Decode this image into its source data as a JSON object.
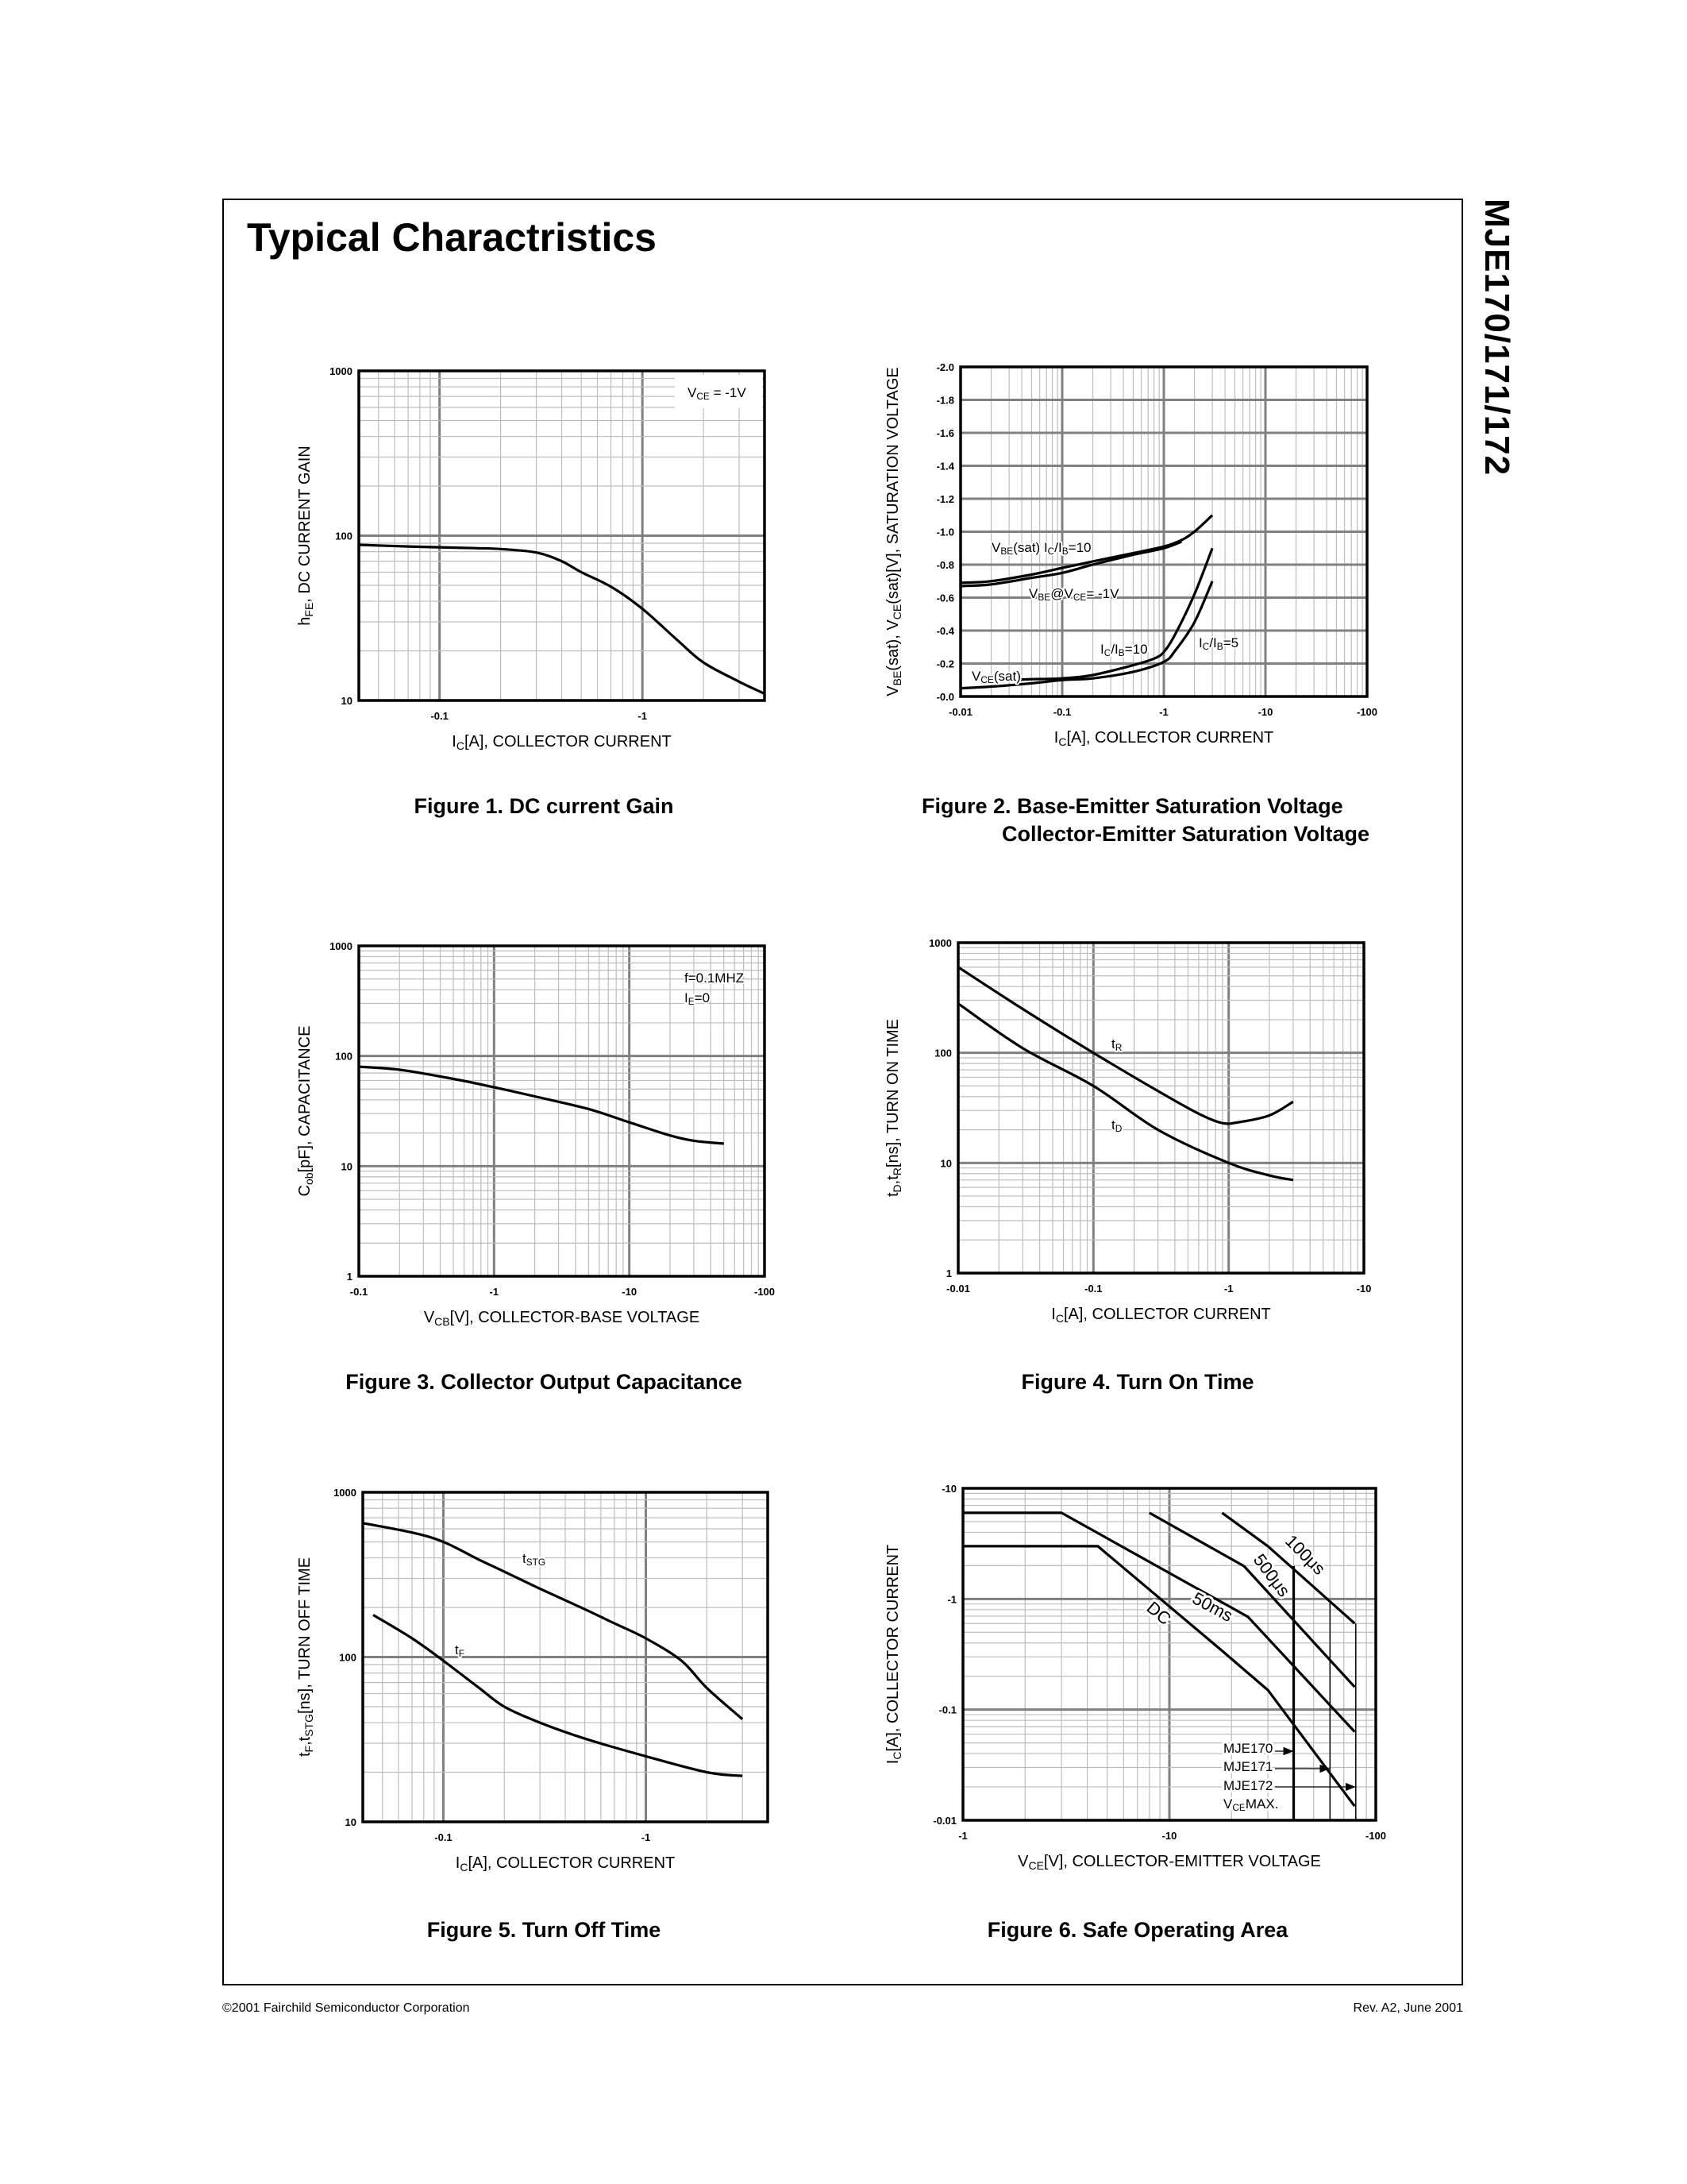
{
  "page": {
    "title": "Typical Charactristics",
    "side_title": "MJE170/171/172",
    "footer_left": "©2001 Fairchild Semiconductor Corporation",
    "footer_right": "Rev. A2, June 2001"
  },
  "chart_data": [
    {
      "type": "line",
      "title": "Figure 1. DC current Gain",
      "xlabel": [
        {
          "t": "I"
        },
        {
          "t": "C",
          "sub": true
        },
        {
          "t": "[A], COLLECTOR CURRENT"
        }
      ],
      "ylabel": [
        {
          "t": "h"
        },
        {
          "t": "FE",
          "sub": true
        },
        {
          "t": ", DC CURRENT GAIN"
        }
      ],
      "x_scale": "log",
      "y_scale": "log",
      "xlim": [
        -0.04,
        -4
      ],
      "ylim": [
        10,
        1000
      ],
      "xticks": [
        {
          "v": -0.1,
          "label": "-0.1"
        },
        {
          "v": -1,
          "label": "-1"
        }
      ],
      "yticks": [
        {
          "v": 10,
          "label": "10"
        },
        {
          "v": 100,
          "label": "100"
        },
        {
          "v": 1000,
          "label": "1000"
        }
      ],
      "grid": true,
      "series": [
        {
          "x": [
            -0.04,
            -0.07,
            -0.1,
            -0.15,
            -0.2,
            -0.3,
            -0.4,
            -0.5,
            -0.7,
            -1,
            -1.5,
            -2,
            -3,
            -4
          ],
          "y": [
            88,
            86,
            85,
            84,
            83,
            79,
            70,
            60,
            49,
            36,
            23,
            17,
            13,
            11
          ]
        }
      ],
      "annotations": [
        {
          "text": [
            {
              "t": "V"
            },
            {
              "t": "CE",
              "sub": true
            },
            {
              "t": " = -1V"
            }
          ]
        }
      ]
    },
    {
      "type": "line",
      "title": "Figure 2. Base-Emitter Saturation Voltage",
      "title_line2": "Collector-Emitter Saturation Voltage",
      "xlabel": [
        {
          "t": "I"
        },
        {
          "t": "C",
          "sub": true
        },
        {
          "t": "[A], COLLECTOR CURRENT"
        }
      ],
      "ylabel": [
        {
          "t": "V"
        },
        {
          "t": "BE",
          "sub": true
        },
        {
          "t": "(sat),  V"
        },
        {
          "t": "CE",
          "sub": true
        },
        {
          "t": "(sat)[V], SATURATION VOLTAGE"
        }
      ],
      "x_scale": "log",
      "y_scale": "linear",
      "xlim": [
        -0.01,
        -100
      ],
      "ylim": [
        0,
        -2.0
      ],
      "xticks": [
        {
          "v": -0.01,
          "label": "-0.01"
        },
        {
          "v": -0.1,
          "label": "-0.1"
        },
        {
          "v": -1,
          "label": "-1"
        },
        {
          "v": -10,
          "label": "-10"
        },
        {
          "v": -100,
          "label": "-100"
        }
      ],
      "yticks": [
        {
          "v": 0,
          "label": "-0.0"
        },
        {
          "v": -0.2,
          "label": "-0.2"
        },
        {
          "v": -0.4,
          "label": "-0.4"
        },
        {
          "v": -0.6,
          "label": "-0.6"
        },
        {
          "v": -0.8,
          "label": "-0.8"
        },
        {
          "v": -1.0,
          "label": "-1.0"
        },
        {
          "v": -1.2,
          "label": "-1.2"
        },
        {
          "v": -1.4,
          "label": "-1.4"
        },
        {
          "v": -1.6,
          "label": "-1.6"
        },
        {
          "v": -1.8,
          "label": "-1.8"
        },
        {
          "v": -2.0,
          "label": "-2.0"
        }
      ],
      "grid": true,
      "series": [
        {
          "x": [
            -0.01,
            -0.02,
            -0.05,
            -0.1,
            -0.2,
            -0.5,
            -1,
            -1.5,
            -2,
            -3
          ],
          "y": [
            -0.69,
            -0.7,
            -0.74,
            -0.78,
            -0.82,
            -0.87,
            -0.91,
            -0.95,
            -1.0,
            -1.1
          ]
        },
        {
          "x": [
            -0.01,
            -0.02,
            -0.05,
            -0.1,
            -0.2,
            -0.5,
            -1,
            -1.5
          ],
          "y": [
            -0.67,
            -0.68,
            -0.72,
            -0.75,
            -0.8,
            -0.86,
            -0.9,
            -0.94
          ]
        },
        {
          "x": [
            -0.03,
            -0.05,
            -0.1,
            -0.2,
            -0.5,
            -0.8,
            -1,
            -1.3,
            -2,
            -3
          ],
          "y": [
            -0.1,
            -0.105,
            -0.11,
            -0.13,
            -0.19,
            -0.23,
            -0.27,
            -0.38,
            -0.62,
            -0.9
          ]
        },
        {
          "x": [
            -0.01,
            -0.02,
            -0.05,
            -0.1,
            -0.2,
            -0.5,
            -1,
            -1.3,
            -2,
            -3
          ],
          "y": [
            -0.05,
            -0.06,
            -0.08,
            -0.1,
            -0.11,
            -0.15,
            -0.21,
            -0.28,
            -0.45,
            -0.7
          ]
        }
      ],
      "annotations": [
        {
          "text": [
            {
              "t": "V"
            },
            {
              "t": "BE",
              "sub": true
            },
            {
              "t": "(sat) I"
            },
            {
              "t": "C",
              "sub": true
            },
            {
              "t": "/I"
            },
            {
              "t": "B",
              "sub": true
            },
            {
              "t": "=10"
            }
          ]
        },
        {
          "text": [
            {
              "t": "V"
            },
            {
              "t": "BE",
              "sub": true
            },
            {
              "t": "@V"
            },
            {
              "t": "CE",
              "sub": true
            },
            {
              "t": "= -1V"
            }
          ]
        },
        {
          "text": [
            {
              "t": "I"
            },
            {
              "t": "C",
              "sub": true
            },
            {
              "t": "/I"
            },
            {
              "t": "B",
              "sub": true
            },
            {
              "t": "=10"
            }
          ]
        },
        {
          "text": [
            {
              "t": "I"
            },
            {
              "t": "C",
              "sub": true
            },
            {
              "t": "/I"
            },
            {
              "t": "B",
              "sub": true
            },
            {
              "t": "=5"
            }
          ]
        },
        {
          "text": [
            {
              "t": "V"
            },
            {
              "t": "CE",
              "sub": true
            },
            {
              "t": "(sat)"
            }
          ]
        }
      ]
    },
    {
      "type": "line",
      "title": "Figure 3. Collector Output Capacitance",
      "xlabel": [
        {
          "t": "V"
        },
        {
          "t": "CB",
          "sub": true
        },
        {
          "t": "[V], COLLECTOR-BASE VOLTAGE"
        }
      ],
      "ylabel": [
        {
          "t": "C"
        },
        {
          "t": "ob",
          "sub": true
        },
        {
          "t": "[pF], CAPACITANCE"
        }
      ],
      "x_scale": "log",
      "y_scale": "log",
      "xlim": [
        -0.1,
        -100
      ],
      "ylim": [
        1,
        1000
      ],
      "xticks": [
        {
          "v": -0.1,
          "label": "-0.1"
        },
        {
          "v": -1,
          "label": "-1"
        },
        {
          "v": -10,
          "label": "-10"
        },
        {
          "v": -100,
          "label": "-100"
        }
      ],
      "yticks": [
        {
          "v": 1,
          "label": "1"
        },
        {
          "v": 10,
          "label": "10"
        },
        {
          "v": 100,
          "label": "100"
        },
        {
          "v": 1000,
          "label": "1000"
        }
      ],
      "grid": true,
      "series": [
        {
          "x": [
            -0.1,
            -0.2,
            -0.5,
            -1,
            -2,
            -5,
            -10,
            -20,
            -30,
            -50
          ],
          "y": [
            80,
            75,
            62,
            52,
            43,
            33,
            25,
            19,
            17,
            16
          ]
        }
      ],
      "annotations": [
        {
          "text": [
            {
              "t": "f=0.1MHZ"
            }
          ]
        },
        {
          "text": [
            {
              "t": "I"
            },
            {
              "t": "E",
              "sub": true
            },
            {
              "t": "=0"
            }
          ]
        }
      ]
    },
    {
      "type": "line",
      "title": "Figure 4. Turn On Time",
      "xlabel": [
        {
          "t": "I"
        },
        {
          "t": "C",
          "sub": true
        },
        {
          "t": "[A], COLLECTOR CURRENT"
        }
      ],
      "ylabel": [
        {
          "t": "t"
        },
        {
          "t": "D",
          "sub": true
        },
        {
          "t": ",t"
        },
        {
          "t": "R",
          "sub": true
        },
        {
          "t": "[ns],  TURN ON TIME"
        }
      ],
      "x_scale": "log",
      "y_scale": "log",
      "xlim": [
        -0.01,
        -10
      ],
      "ylim": [
        1,
        1000
      ],
      "xticks": [
        {
          "v": -0.01,
          "label": "-0.01"
        },
        {
          "v": -0.1,
          "label": "-0.1"
        },
        {
          "v": -1,
          "label": "-1"
        },
        {
          "v": -10,
          "label": "-10"
        }
      ],
      "yticks": [
        {
          "v": 1,
          "label": "1"
        },
        {
          "v": 10,
          "label": "10"
        },
        {
          "v": 100,
          "label": "100"
        },
        {
          "v": 1000,
          "label": "1000"
        }
      ],
      "grid": true,
      "series": [
        {
          "name": "tR",
          "x": [
            -0.01,
            -0.03,
            -0.1,
            -0.3,
            -0.6,
            -0.9,
            -1.2,
            -2,
            -3
          ],
          "y": [
            600,
            250,
            100,
            45,
            28,
            23,
            23.5,
            27,
            36
          ]
        },
        {
          "name": "tD",
          "x": [
            -0.01,
            -0.03,
            -0.1,
            -0.3,
            -1,
            -2,
            -3
          ],
          "y": [
            280,
            110,
            50,
            20,
            10,
            7.7,
            7
          ]
        }
      ],
      "annotations": [
        {
          "text": [
            {
              "t": "t"
            },
            {
              "t": "R",
              "sub": true
            }
          ]
        },
        {
          "text": [
            {
              "t": "t"
            },
            {
              "t": "D",
              "sub": true
            }
          ]
        }
      ]
    },
    {
      "type": "line",
      "title": "Figure 5. Turn Off Time",
      "xlabel": [
        {
          "t": "I"
        },
        {
          "t": "C",
          "sub": true
        },
        {
          "t": "[A], COLLECTOR CURRENT"
        }
      ],
      "ylabel": [
        {
          "t": "t"
        },
        {
          "t": "F",
          "sub": true
        },
        {
          "t": ",t"
        },
        {
          "t": "STG",
          "sub": true
        },
        {
          "t": "[ns], TURN OFF TIME"
        }
      ],
      "x_scale": "log",
      "y_scale": "log",
      "xlim": [
        -0.04,
        -4
      ],
      "ylim": [
        10,
        1000
      ],
      "xticks": [
        {
          "v": -0.1,
          "label": "-0.1"
        },
        {
          "v": -1,
          "label": "-1"
        }
      ],
      "yticks": [
        {
          "v": 10,
          "label": "10"
        },
        {
          "v": 100,
          "label": "100"
        },
        {
          "v": 1000,
          "label": "1000"
        }
      ],
      "grid": true,
      "series": [
        {
          "name": "tSTG",
          "x": [
            -0.04,
            -0.07,
            -0.1,
            -0.15,
            -0.2,
            -0.3,
            -0.5,
            -0.7,
            -1,
            -1.5,
            -2,
            -3
          ],
          "y": [
            650,
            570,
            500,
            390,
            330,
            260,
            195,
            160,
            130,
            95,
            65,
            42
          ]
        },
        {
          "name": "tF",
          "x": [
            -0.045,
            -0.07,
            -0.1,
            -0.15,
            -0.2,
            -0.3,
            -0.5,
            -1,
            -2,
            -3
          ],
          "y": [
            180,
            130,
            95,
            65,
            50,
            40,
            32,
            25,
            20,
            19
          ]
        }
      ],
      "annotations": [
        {
          "text": [
            {
              "t": "t"
            },
            {
              "t": "STG",
              "sub": true
            }
          ]
        },
        {
          "text": [
            {
              "t": "t"
            },
            {
              "t": "F",
              "sub": true
            }
          ]
        }
      ]
    },
    {
      "type": "line",
      "title": "Figure 6. Safe Operating Area",
      "xlabel": [
        {
          "t": "V"
        },
        {
          "t": "CE",
          "sub": true
        },
        {
          "t": "[V], COLLECTOR-EMITTER VOLTAGE"
        }
      ],
      "ylabel": [
        {
          "t": "I"
        },
        {
          "t": "C",
          "sub": true
        },
        {
          "t": "[A], COLLECTOR CURRENT"
        }
      ],
      "x_scale": "log",
      "y_scale": "log",
      "xlim": [
        -1,
        -100
      ],
      "ylim": [
        -0.01,
        -10
      ],
      "xticks": [
        {
          "v": -1,
          "label": "-1"
        },
        {
          "v": -10,
          "label": "-10"
        },
        {
          "v": -100,
          "label": "-100"
        }
      ],
      "yticks": [
        {
          "v": -0.01,
          "label": "-0.01"
        },
        {
          "v": -0.1,
          "label": "-0.1"
        },
        {
          "v": -1,
          "label": "-1"
        },
        {
          "v": -10,
          "label": "-10"
        }
      ],
      "grid": true,
      "series": [
        {
          "name": "DC",
          "x": [
            -1,
            -4.5,
            -18,
            -30,
            -79
          ],
          "y": [
            -3,
            -3,
            -0.34,
            -0.15,
            -0.0134
          ]
        },
        {
          "name": "50ms",
          "x": [
            -1,
            -3,
            -24,
            -79
          ],
          "y": [
            -6,
            -6,
            -0.69,
            -0.063
          ]
        },
        {
          "name": "500μs",
          "x": [
            -8,
            -23,
            -79
          ],
          "y": [
            -6,
            -1.98,
            -0.16
          ]
        },
        {
          "name": "100μs",
          "x": [
            -18,
            -30,
            -79
          ],
          "y": [
            -6,
            -3,
            -0.6
          ]
        }
      ],
      "vce_max": [
        {
          "device": "MJE170",
          "v": -40,
          "top": -1.98
        },
        {
          "device": "MJE171",
          "v": -60,
          "top": -0.96
        },
        {
          "device": "MJE172",
          "v": -80,
          "top": -0.6
        }
      ],
      "annotations": [
        {
          "text": [
            {
              "t": "100μs"
            }
          ]
        },
        {
          "text": [
            {
              "t": "500μs"
            }
          ]
        },
        {
          "text": [
            {
              "t": "50ms"
            }
          ]
        },
        {
          "text": [
            {
              "t": "DC"
            }
          ]
        },
        {
          "text": [
            {
              "t": "MJE170"
            }
          ]
        },
        {
          "text": [
            {
              "t": "MJE171"
            }
          ]
        },
        {
          "text": [
            {
              "t": "MJE172"
            }
          ]
        },
        {
          "text": [
            {
              "t": "V"
            },
            {
              "t": "CE",
              "sub": true
            },
            {
              "t": "MAX."
            }
          ]
        }
      ]
    }
  ]
}
